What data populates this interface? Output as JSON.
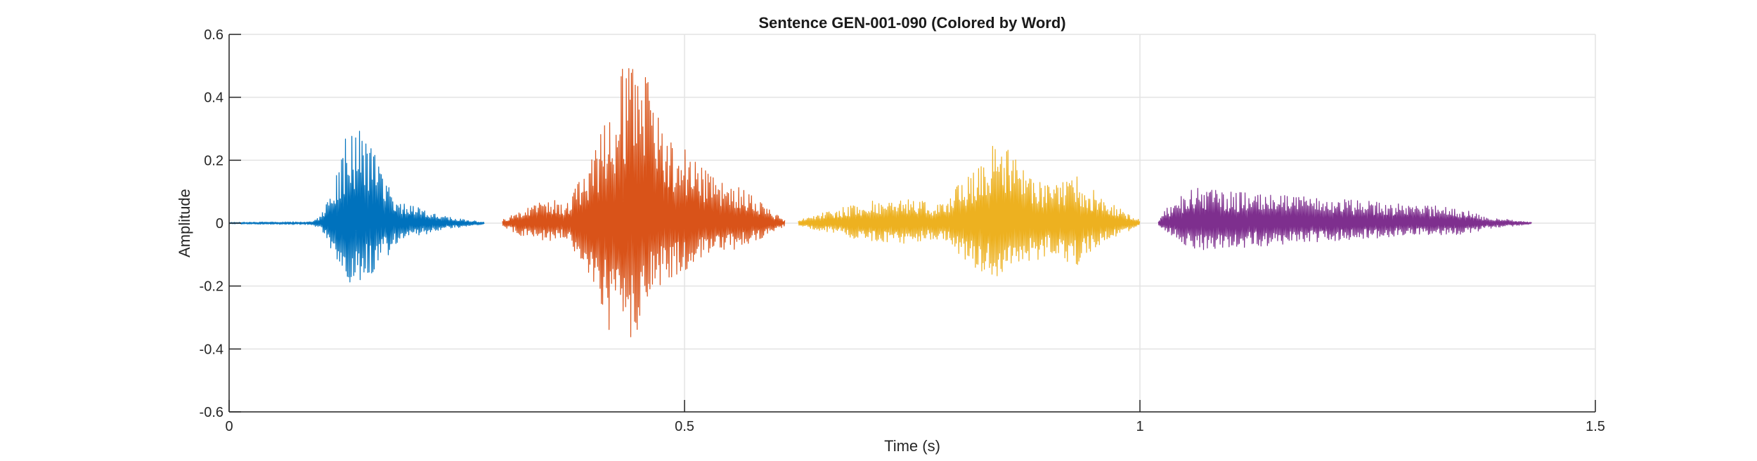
{
  "chart_data": {
    "type": "line",
    "title": "Sentence GEN-001-090 (Colored by Word)",
    "xlabel": "Time (s)",
    "ylabel": "Amplitude",
    "xlim": [
      0,
      1.5
    ],
    "ylim": [
      -0.6,
      0.6
    ],
    "x_ticks": [
      0,
      0.5,
      1,
      1.5
    ],
    "x_tick_labels": [
      "0",
      "0.5",
      "1",
      "1.5"
    ],
    "y_ticks": [
      -0.6,
      -0.4,
      -0.2,
      0,
      0.2,
      0.4,
      0.6
    ],
    "y_tick_labels": [
      "-0.6",
      "-0.4",
      "-0.2",
      "0",
      "0.2",
      "0.4",
      "0.6"
    ],
    "grid": true,
    "series": [
      {
        "color": "#0072BD",
        "x_range": [
          0.0,
          0.28
        ],
        "envelope_pos": [
          [
            0.0,
            0.003
          ],
          [
            0.09,
            0.005
          ],
          [
            0.1,
            0.02
          ],
          [
            0.115,
            0.12
          ],
          [
            0.13,
            0.3
          ],
          [
            0.145,
            0.31
          ],
          [
            0.165,
            0.19
          ],
          [
            0.185,
            0.08
          ],
          [
            0.21,
            0.05
          ],
          [
            0.24,
            0.02
          ],
          [
            0.28,
            0.003
          ]
        ],
        "envelope_neg": [
          [
            0.0,
            -0.003
          ],
          [
            0.09,
            -0.005
          ],
          [
            0.1,
            -0.02
          ],
          [
            0.115,
            -0.12
          ],
          [
            0.13,
            -0.2
          ],
          [
            0.145,
            -0.19
          ],
          [
            0.165,
            -0.14
          ],
          [
            0.185,
            -0.06
          ],
          [
            0.21,
            -0.04
          ],
          [
            0.24,
            -0.02
          ],
          [
            0.28,
            -0.003
          ]
        ]
      },
      {
        "color": "#D95319",
        "x_range": [
          0.3,
          0.61
        ],
        "envelope_pos": [
          [
            0.3,
            0.01
          ],
          [
            0.32,
            0.04
          ],
          [
            0.35,
            0.08
          ],
          [
            0.37,
            0.06
          ],
          [
            0.4,
            0.22
          ],
          [
            0.42,
            0.4
          ],
          [
            0.44,
            0.56
          ],
          [
            0.46,
            0.5
          ],
          [
            0.48,
            0.3
          ],
          [
            0.52,
            0.18
          ],
          [
            0.56,
            0.12
          ],
          [
            0.59,
            0.05
          ],
          [
            0.61,
            0.01
          ]
        ],
        "envelope_neg": [
          [
            0.3,
            -0.01
          ],
          [
            0.32,
            -0.04
          ],
          [
            0.35,
            -0.06
          ],
          [
            0.37,
            -0.05
          ],
          [
            0.4,
            -0.22
          ],
          [
            0.42,
            -0.38
          ],
          [
            0.44,
            -0.4
          ],
          [
            0.46,
            -0.26
          ],
          [
            0.48,
            -0.18
          ],
          [
            0.52,
            -0.12
          ],
          [
            0.56,
            -0.08
          ],
          [
            0.59,
            -0.04
          ],
          [
            0.61,
            -0.01
          ]
        ]
      },
      {
        "color": "#EDB120",
        "x_range": [
          0.625,
          1.0
        ],
        "envelope_pos": [
          [
            0.625,
            0.01
          ],
          [
            0.66,
            0.04
          ],
          [
            0.7,
            0.07
          ],
          [
            0.74,
            0.08
          ],
          [
            0.78,
            0.06
          ],
          [
            0.82,
            0.18
          ],
          [
            0.845,
            0.27
          ],
          [
            0.87,
            0.18
          ],
          [
            0.9,
            0.12
          ],
          [
            0.93,
            0.15
          ],
          [
            0.96,
            0.08
          ],
          [
            1.0,
            0.01
          ]
        ],
        "envelope_neg": [
          [
            0.625,
            -0.01
          ],
          [
            0.66,
            -0.03
          ],
          [
            0.7,
            -0.06
          ],
          [
            0.74,
            -0.07
          ],
          [
            0.78,
            -0.05
          ],
          [
            0.82,
            -0.15
          ],
          [
            0.845,
            -0.18
          ],
          [
            0.87,
            -0.14
          ],
          [
            0.9,
            -0.1
          ],
          [
            0.93,
            -0.14
          ],
          [
            0.96,
            -0.06
          ],
          [
            1.0,
            -0.01
          ]
        ]
      },
      {
        "color": "#7E2F8E",
        "x_range": [
          1.02,
          1.43
        ],
        "envelope_pos": [
          [
            1.02,
            0.01
          ],
          [
            1.03,
            0.05
          ],
          [
            1.06,
            0.12
          ],
          [
            1.1,
            0.1
          ],
          [
            1.15,
            0.09
          ],
          [
            1.2,
            0.08
          ],
          [
            1.25,
            0.07
          ],
          [
            1.3,
            0.06
          ],
          [
            1.35,
            0.05
          ],
          [
            1.38,
            0.02
          ],
          [
            1.43,
            0.003
          ]
        ],
        "envelope_neg": [
          [
            1.02,
            -0.01
          ],
          [
            1.03,
            -0.03
          ],
          [
            1.06,
            -0.09
          ],
          [
            1.1,
            -0.08
          ],
          [
            1.15,
            -0.07
          ],
          [
            1.2,
            -0.06
          ],
          [
            1.25,
            -0.05
          ],
          [
            1.3,
            -0.04
          ],
          [
            1.35,
            -0.04
          ],
          [
            1.38,
            -0.02
          ],
          [
            1.43,
            -0.003
          ]
        ]
      }
    ]
  }
}
